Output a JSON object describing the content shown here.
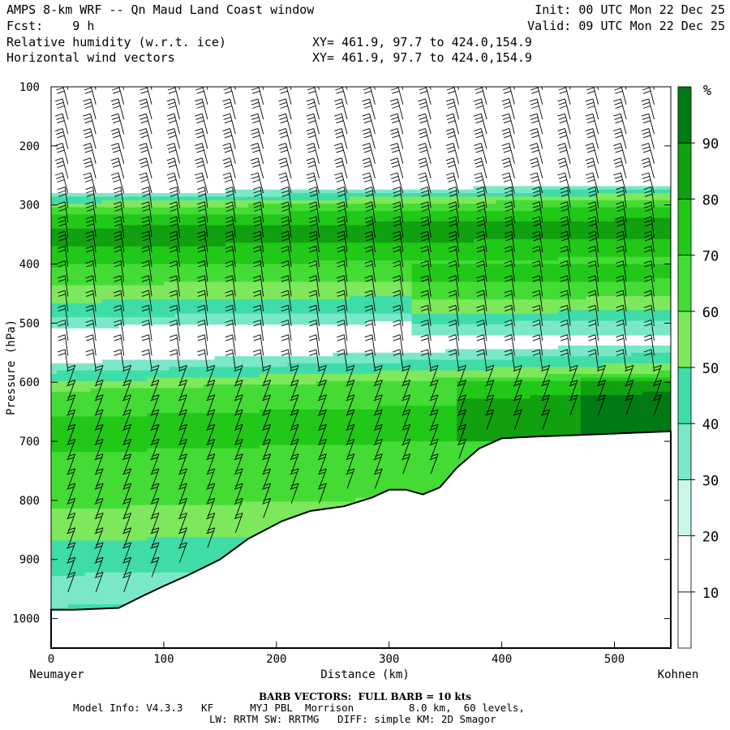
{
  "header": {
    "title": "AMPS 8-km WRF -- Qn Maud Land Coast window",
    "fcst": "Fcst:    9 h",
    "field1": "Relative humidity (w.r.t. ice)",
    "field2": "Horizontal wind vectors",
    "xy1": "XY= 461.9, 97.7 to 424.0,154.9",
    "xy2": "XY= 461.9, 97.7 to 424.0,154.9",
    "init": "Init: 00 UTC Mon 22 Dec 25",
    "valid": "Valid: 09 UTC Mon 22 Dec 25"
  },
  "footer": {
    "barb": "BARB VECTORS:  FULL BARB = 10 kts",
    "model1": "Model Info: V4.3.3   KF      MYJ PBL  Morrison         8.0 km,  60 levels,",
    "model2": "LW: RRTM SW: RRTMG   DIFF: simple KM: 2D Smagor"
  },
  "chart_data": {
    "type": "heatmap",
    "title": "Relative humidity (w.r.t. ice) and horizontal wind vectors, cross section",
    "xlabel": "Distance (km)",
    "ylabel": "Pressure (hPa)",
    "left_end": "Neumayer",
    "right_end": "Kohnen",
    "xlim": [
      0,
      550
    ],
    "ylim_hpa": [
      100,
      1050
    ],
    "x_ticks": [
      0,
      100,
      200,
      300,
      400,
      500
    ],
    "y_ticks": [
      100,
      200,
      300,
      400,
      500,
      600,
      700,
      800,
      900,
      1000
    ],
    "terrain_surface": {
      "distance_km": [
        0,
        20,
        60,
        80,
        100,
        120,
        150,
        175,
        205,
        230,
        260,
        285,
        300,
        315,
        330,
        345,
        360,
        380,
        400,
        430,
        460,
        500,
        550
      ],
      "pressure_hpa": [
        985,
        985,
        982,
        963,
        945,
        928,
        900,
        865,
        835,
        818,
        810,
        795,
        782,
        782,
        790,
        778,
        745,
        712,
        695,
        692,
        690,
        687,
        683
      ]
    },
    "rh_profile": {
      "pressure_hpa": [
        270,
        285,
        300,
        315,
        330,
        345,
        365,
        390,
        410,
        430,
        450,
        470,
        490,
        510,
        535,
        560,
        580,
        600,
        615,
        640,
        660,
        680,
        700,
        720,
        740,
        760,
        780,
        800,
        830,
        860,
        900,
        940,
        980
      ],
      "rh_percent": [
        15,
        35,
        55,
        68,
        76,
        83,
        82,
        74,
        68,
        62,
        55,
        48,
        40,
        28,
        22,
        25,
        38,
        50,
        60,
        66,
        70,
        72,
        70,
        70,
        68,
        66,
        63,
        62,
        58,
        52,
        44,
        38,
        40
      ]
    },
    "wind_barbs_note": "Barbs mostly from north/northwest aloft, 20-60 kts",
    "colorbar": {
      "unit": "%",
      "levels": [
        0,
        10,
        20,
        30,
        40,
        50,
        60,
        70,
        80,
        90,
        100
      ],
      "labels": [
        "10",
        "20",
        "30",
        "40",
        "50",
        "60",
        "70",
        "80",
        "90"
      ],
      "colors": [
        "#ffffff",
        "#ffffff",
        "#ffffff",
        "#c8f7e6",
        "#7ae8c8",
        "#3fdca8",
        "#7de85c",
        "#44dc34",
        "#22c818",
        "#10a010",
        "#007a14"
      ]
    }
  }
}
